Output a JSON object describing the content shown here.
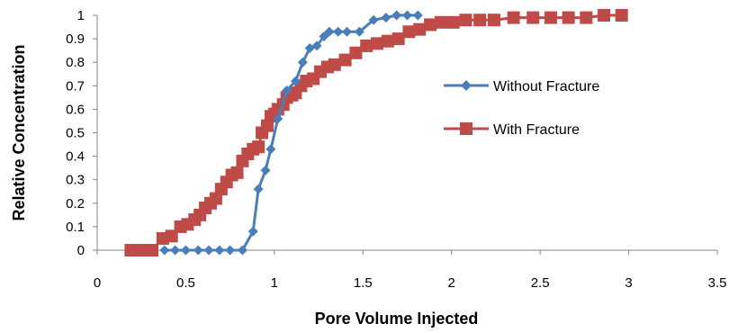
{
  "chart_data": {
    "type": "line",
    "xlabel": "Pore Volume Injected",
    "ylabel": "Relative Concentration",
    "xlim": [
      0,
      3.5
    ],
    "ylim": [
      0,
      1
    ],
    "xticks": [
      "0",
      "0.5",
      "1",
      "1.5",
      "2",
      "2.5",
      "3",
      "3.5"
    ],
    "yticks": [
      "0",
      "0.1",
      "0.2",
      "0.3",
      "0.4",
      "0.5",
      "0.6",
      "0.7",
      "0.8",
      "0.9",
      "1"
    ],
    "grid": false,
    "legend_position": "right",
    "series": [
      {
        "name": "Without Fracture",
        "color": "#4a7ebb",
        "marker": "diamond",
        "points": [
          [
            0.38,
            0
          ],
          [
            0.44,
            0
          ],
          [
            0.5,
            0
          ],
          [
            0.57,
            0
          ],
          [
            0.63,
            0
          ],
          [
            0.69,
            0
          ],
          [
            0.75,
            0
          ],
          [
            0.82,
            0
          ],
          [
            0.88,
            0.08
          ],
          [
            0.91,
            0.26
          ],
          [
            0.95,
            0.34
          ],
          [
            0.98,
            0.43
          ],
          [
            1.02,
            0.56
          ],
          [
            1.07,
            0.68
          ],
          [
            1.12,
            0.72
          ],
          [
            1.16,
            0.8
          ],
          [
            1.2,
            0.86
          ],
          [
            1.24,
            0.87
          ],
          [
            1.28,
            0.91
          ],
          [
            1.31,
            0.93
          ],
          [
            1.36,
            0.93
          ],
          [
            1.41,
            0.93
          ],
          [
            1.48,
            0.93
          ],
          [
            1.56,
            0.98
          ],
          [
            1.63,
            0.99
          ],
          [
            1.69,
            1.0
          ],
          [
            1.75,
            1.0
          ],
          [
            1.81,
            1.0
          ]
        ]
      },
      {
        "name": "With Fracture",
        "color": "#be4b48",
        "marker": "square",
        "points": [
          [
            0.19,
            0
          ],
          [
            0.25,
            0
          ],
          [
            0.31,
            0
          ],
          [
            0.37,
            0.05
          ],
          [
            0.42,
            0.06
          ],
          [
            0.47,
            0.1
          ],
          [
            0.51,
            0.11
          ],
          [
            0.55,
            0.13
          ],
          [
            0.58,
            0.15
          ],
          [
            0.61,
            0.18
          ],
          [
            0.64,
            0.2
          ],
          [
            0.67,
            0.22
          ],
          [
            0.7,
            0.26
          ],
          [
            0.73,
            0.29
          ],
          [
            0.76,
            0.32
          ],
          [
            0.79,
            0.33
          ],
          [
            0.82,
            0.38
          ],
          [
            0.85,
            0.41
          ],
          [
            0.88,
            0.43
          ],
          [
            0.91,
            0.44
          ],
          [
            0.93,
            0.5
          ],
          [
            0.96,
            0.53
          ],
          [
            0.98,
            0.57
          ],
          [
            1.0,
            0.58
          ],
          [
            1.02,
            0.6
          ],
          [
            1.05,
            0.62
          ],
          [
            1.07,
            0.65
          ],
          [
            1.1,
            0.66
          ],
          [
            1.12,
            0.67
          ],
          [
            1.15,
            0.7
          ],
          [
            1.18,
            0.72
          ],
          [
            1.22,
            0.73
          ],
          [
            1.26,
            0.76
          ],
          [
            1.3,
            0.78
          ],
          [
            1.34,
            0.79
          ],
          [
            1.4,
            0.81
          ],
          [
            1.46,
            0.84
          ],
          [
            1.52,
            0.87
          ],
          [
            1.58,
            0.88
          ],
          [
            1.64,
            0.89
          ],
          [
            1.7,
            0.9
          ],
          [
            1.76,
            0.93
          ],
          [
            1.82,
            0.94
          ],
          [
            1.88,
            0.96
          ],
          [
            1.94,
            0.97
          ],
          [
            2.01,
            0.97
          ],
          [
            2.08,
            0.98
          ],
          [
            2.16,
            0.98
          ],
          [
            2.24,
            0.98
          ],
          [
            2.35,
            0.99
          ],
          [
            2.46,
            0.99
          ],
          [
            2.56,
            0.99
          ],
          [
            2.66,
            0.99
          ],
          [
            2.76,
            0.99
          ],
          [
            2.86,
            1.0
          ],
          [
            2.96,
            1.0
          ]
        ]
      }
    ]
  }
}
